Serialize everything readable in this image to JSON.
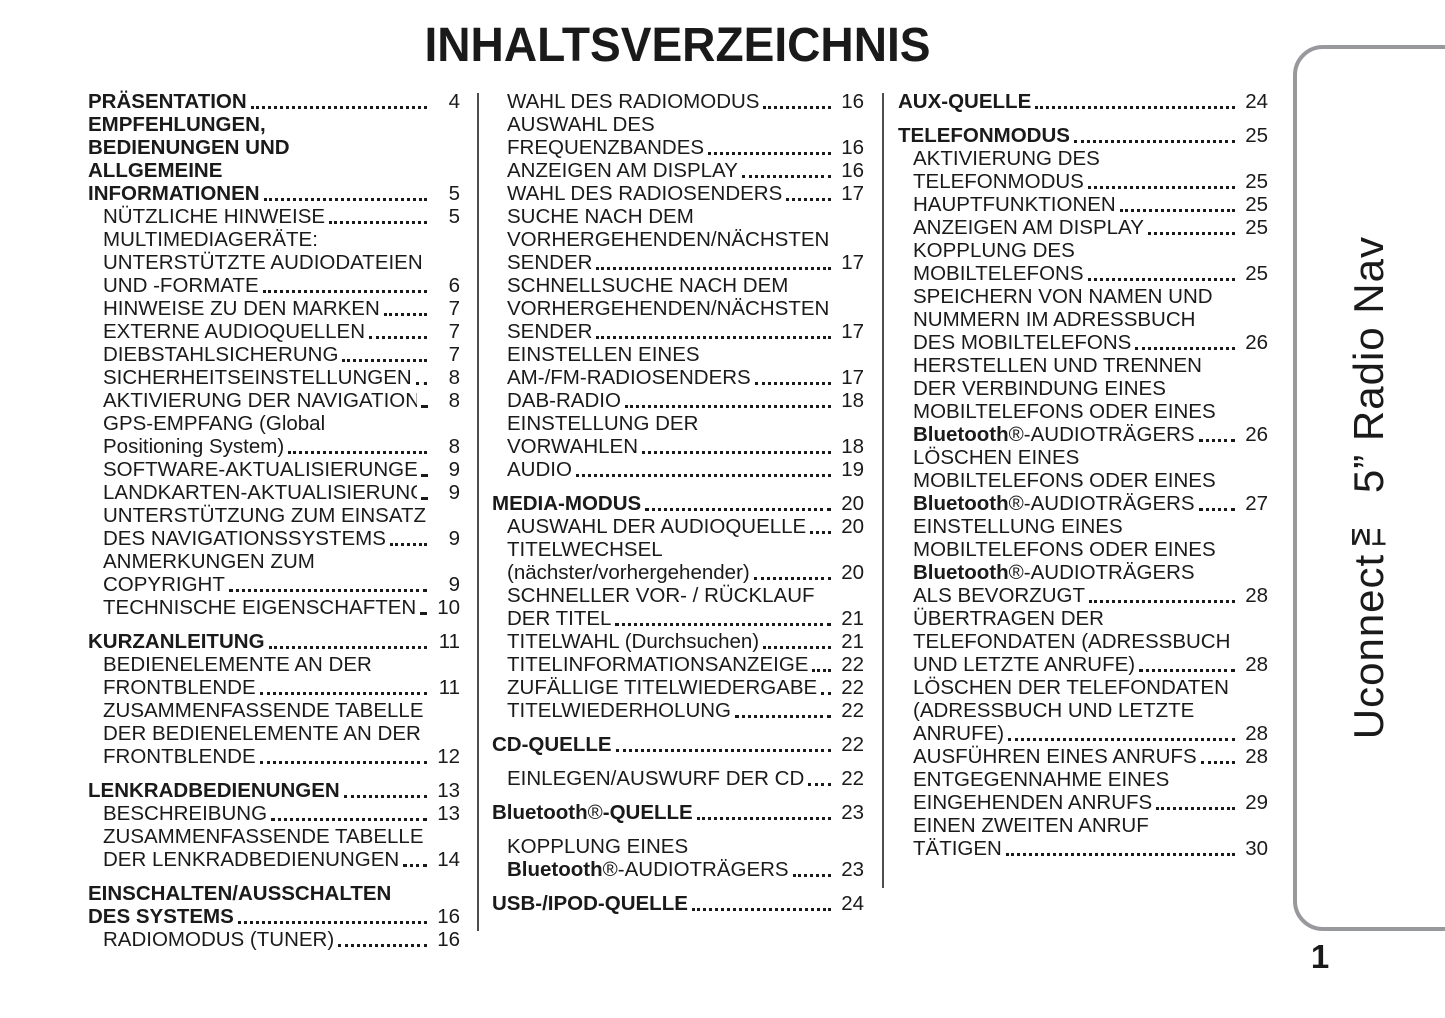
{
  "document": {
    "title": "INHALTSVERZEICHNIS",
    "page_number": "1",
    "sidebar_label": "Uconnect™ 5” Radio Nav"
  },
  "colors": {
    "text": "#1a1a1a",
    "column_separator": "#4d4d4d",
    "sidebar_border": "#98999d"
  },
  "toc": {
    "columns": [
      {
        "entries": [
          {
            "bold": true,
            "page": "4",
            "lines": [
              [
                {
                  "t": "PRÄSENTATION"
                }
              ]
            ]
          },
          {
            "bold": true,
            "page": "5",
            "lines": [
              [
                {
                  "t": "EMPFEHLUNGEN,"
                }
              ],
              [
                {
                  "t": "BEDIENUNGEN UND"
                }
              ],
              [
                {
                  "t": "ALLGEMEINE"
                }
              ],
              [
                {
                  "t": "INFORMATIONEN"
                }
              ]
            ]
          },
          {
            "indent": true,
            "page": "5",
            "lines": [
              [
                {
                  "t": "NÜTZLICHE HINWEISE"
                }
              ]
            ]
          },
          {
            "indent": true,
            "page": "6",
            "lines": [
              [
                {
                  "t": "MULTIMEDIAGERÄTE:"
                }
              ],
              [
                {
                  "t": "UNTERSTÜTZTE AUDIODATEIEN"
                }
              ],
              [
                {
                  "t": "UND -FORMATE"
                }
              ]
            ]
          },
          {
            "indent": true,
            "page": "7",
            "lines": [
              [
                {
                  "t": "HINWEISE ZU DEN MARKEN"
                }
              ]
            ]
          },
          {
            "indent": true,
            "page": "7",
            "lines": [
              [
                {
                  "t": "EXTERNE AUDIOQUELLEN"
                }
              ]
            ]
          },
          {
            "indent": true,
            "page": "7",
            "lines": [
              [
                {
                  "t": "DIEBSTAHLSICHERUNG"
                }
              ]
            ]
          },
          {
            "indent": true,
            "page": "8",
            "lines": [
              [
                {
                  "t": "SICHERHEITSEINSTELLUNGEN"
                }
              ]
            ]
          },
          {
            "indent": true,
            "page": "8",
            "lines": [
              [
                {
                  "t": "AKTIVIERUNG DER NAVIGATION"
                }
              ]
            ]
          },
          {
            "indent": true,
            "page": "8",
            "lines": [
              [
                {
                  "t": "GPS-EMPFANG (Global"
                }
              ],
              [
                {
                  "t": "Positioning System)"
                }
              ]
            ]
          },
          {
            "indent": true,
            "page": "9",
            "lines": [
              [
                {
                  "t": "SOFTWARE-AKTUALISIERUNGEN"
                }
              ]
            ]
          },
          {
            "indent": true,
            "page": "9",
            "lines": [
              [
                {
                  "t": "LANDKARTEN-AKTUALISIERUNG"
                }
              ]
            ]
          },
          {
            "indent": true,
            "page": "9",
            "lines": [
              [
                {
                  "t": "UNTERSTÜTZUNG ZUM EINSATZ"
                }
              ],
              [
                {
                  "t": "DES NAVIGATIONSSYSTEMS"
                }
              ]
            ]
          },
          {
            "indent": true,
            "page": "9",
            "lines": [
              [
                {
                  "t": "ANMERKUNGEN ZUM"
                }
              ],
              [
                {
                  "t": "COPYRIGHT"
                }
              ]
            ]
          },
          {
            "indent": true,
            "page": "10",
            "lines": [
              [
                {
                  "t": "TECHNISCHE EIGENSCHAFTEN"
                }
              ]
            ]
          },
          {
            "bold": true,
            "gap": true,
            "page": "11",
            "lines": [
              [
                {
                  "t": "KURZANLEITUNG"
                }
              ]
            ]
          },
          {
            "indent": true,
            "page": "11",
            "lines": [
              [
                {
                  "t": "BEDIENELEMENTE AN DER"
                }
              ],
              [
                {
                  "t": "FRONTBLENDE"
                }
              ]
            ]
          },
          {
            "indent": true,
            "page": "12",
            "lines": [
              [
                {
                  "t": "ZUSAMMENFASSENDE TABELLE"
                }
              ],
              [
                {
                  "t": "DER BEDIENELEMENTE AN DER"
                }
              ],
              [
                {
                  "t": "FRONTBLENDE"
                }
              ]
            ]
          },
          {
            "bold": true,
            "gap": true,
            "page": "13",
            "lines": [
              [
                {
                  "t": "LENKRADBEDIENUNGEN"
                }
              ]
            ]
          },
          {
            "indent": true,
            "page": "13",
            "lines": [
              [
                {
                  "t": "BESCHREIBUNG"
                }
              ]
            ]
          },
          {
            "indent": true,
            "page": "14",
            "lines": [
              [
                {
                  "t": "ZUSAMMENFASSENDE TABELLE"
                }
              ],
              [
                {
                  "t": "DER LENKRADBEDIENUNGEN"
                }
              ]
            ]
          },
          {
            "bold": true,
            "gap": true,
            "page": "16",
            "lines": [
              [
                {
                  "t": "EINSCHALTEN/AUSSCHALTEN"
                }
              ],
              [
                {
                  "t": "DES SYSTEMS"
                }
              ]
            ]
          },
          {
            "indent": true,
            "page": "16",
            "lines": [
              [
                {
                  "t": "RADIOMODUS (TUNER)"
                }
              ]
            ]
          }
        ]
      },
      {
        "entries": [
          {
            "indent": true,
            "page": "16",
            "lines": [
              [
                {
                  "t": "WAHL DES RADIOMODUS"
                }
              ]
            ]
          },
          {
            "indent": true,
            "page": "16",
            "lines": [
              [
                {
                  "t": "AUSWAHL DES"
                }
              ],
              [
                {
                  "t": "FREQUENZBANDES"
                }
              ]
            ]
          },
          {
            "indent": true,
            "page": "16",
            "lines": [
              [
                {
                  "t": "ANZEIGEN AM DISPLAY"
                }
              ]
            ]
          },
          {
            "indent": true,
            "page": "17",
            "lines": [
              [
                {
                  "t": "WAHL DES RADIOSENDERS"
                }
              ]
            ]
          },
          {
            "indent": true,
            "page": "17",
            "lines": [
              [
                {
                  "t": "SUCHE NACH DEM"
                }
              ],
              [
                {
                  "t": "VORHERGEHENDEN/NÄCHSTEN"
                }
              ],
              [
                {
                  "t": "SENDER"
                }
              ]
            ]
          },
          {
            "indent": true,
            "page": "17",
            "lines": [
              [
                {
                  "t": "SCHNELLSUCHE NACH DEM"
                }
              ],
              [
                {
                  "t": "VORHERGEHENDEN/NÄCHSTEN"
                }
              ],
              [
                {
                  "t": "SENDER"
                }
              ]
            ]
          },
          {
            "indent": true,
            "page": "17",
            "lines": [
              [
                {
                  "t": "EINSTELLEN EINES"
                }
              ],
              [
                {
                  "t": "AM-/FM-RADIOSENDERS"
                }
              ]
            ]
          },
          {
            "indent": true,
            "page": "18",
            "lines": [
              [
                {
                  "t": "DAB-RADIO"
                }
              ]
            ]
          },
          {
            "indent": true,
            "page": "18",
            "lines": [
              [
                {
                  "t": "EINSTELLUNG DER"
                }
              ],
              [
                {
                  "t": "VORWAHLEN"
                }
              ]
            ]
          },
          {
            "indent": true,
            "page": "19",
            "lines": [
              [
                {
                  "t": "AUDIO"
                }
              ]
            ]
          },
          {
            "bold": true,
            "gap": true,
            "page": "20",
            "lines": [
              [
                {
                  "t": "MEDIA-MODUS"
                }
              ]
            ]
          },
          {
            "indent": true,
            "page": "20",
            "lines": [
              [
                {
                  "t": "AUSWAHL DER AUDIOQUELLE"
                }
              ]
            ]
          },
          {
            "indent": true,
            "page": "20",
            "lines": [
              [
                {
                  "t": "TITELWECHSEL"
                }
              ],
              [
                {
                  "t": "(nächster/vorhergehender)"
                }
              ]
            ]
          },
          {
            "indent": true,
            "page": "21",
            "lines": [
              [
                {
                  "t": "SCHNELLER VOR- / RÜCKLAUF"
                }
              ],
              [
                {
                  "t": "DER TITEL"
                }
              ]
            ]
          },
          {
            "indent": true,
            "page": "21",
            "lines": [
              [
                {
                  "t": "TITELWAHL (Durchsuchen)"
                }
              ]
            ]
          },
          {
            "indent": true,
            "page": "22",
            "lines": [
              [
                {
                  "t": "TITELINFORMATIONSANZEIGE"
                }
              ]
            ]
          },
          {
            "indent": true,
            "page": "22",
            "lines": [
              [
                {
                  "t": "ZUFÄLLIGE TITELWIEDERGABE"
                }
              ]
            ]
          },
          {
            "indent": true,
            "page": "22",
            "lines": [
              [
                {
                  "t": "TITELWIEDERHOLUNG"
                }
              ]
            ]
          },
          {
            "bold": true,
            "gap": true,
            "page": "22",
            "lines": [
              [
                {
                  "t": "CD-QUELLE"
                }
              ]
            ]
          },
          {
            "indent": true,
            "gap": true,
            "page": "22",
            "lines": [
              [
                {
                  "t": "EINLEGEN/AUSWURF DER CD"
                }
              ]
            ]
          },
          {
            "bold": true,
            "gap": true,
            "page": "23",
            "lines": [
              [
                {
                  "t": "Bluetooth",
                  "b": true
                },
                {
                  "t": "®",
                  "b": false
                },
                {
                  "t": "-QUELLE",
                  "b": true
                }
              ]
            ]
          },
          {
            "indent": true,
            "gap": true,
            "page": "23",
            "lines": [
              [
                {
                  "t": "KOPPLUNG EINES"
                }
              ],
              [
                {
                  "t": "Bluetooth",
                  "b": true
                },
                {
                  "t": "®-AUDIOTRÄGERS",
                  "b": false
                }
              ]
            ]
          },
          {
            "bold": true,
            "gap": true,
            "page": "24",
            "lines": [
              [
                {
                  "t": "USB-/IPOD-QUELLE"
                }
              ]
            ]
          }
        ]
      },
      {
        "entries": [
          {
            "bold": true,
            "page": "24",
            "lines": [
              [
                {
                  "t": "AUX-QUELLE"
                }
              ]
            ]
          },
          {
            "bold": true,
            "gap": true,
            "page": "25",
            "lines": [
              [
                {
                  "t": "TELEFONMODUS"
                }
              ]
            ]
          },
          {
            "indent": true,
            "page": "25",
            "lines": [
              [
                {
                  "t": "AKTIVIERUNG DES"
                }
              ],
              [
                {
                  "t": "TELEFONMODUS"
                }
              ]
            ]
          },
          {
            "indent": true,
            "page": "25",
            "lines": [
              [
                {
                  "t": "HAUPTFUNKTIONEN"
                }
              ]
            ]
          },
          {
            "indent": true,
            "page": "25",
            "lines": [
              [
                {
                  "t": "ANZEIGEN AM DISPLAY"
                }
              ]
            ]
          },
          {
            "indent": true,
            "page": "25",
            "lines": [
              [
                {
                  "t": "KOPPLUNG DES"
                }
              ],
              [
                {
                  "t": "MOBILTELEFONS"
                }
              ]
            ]
          },
          {
            "indent": true,
            "page": "26",
            "lines": [
              [
                {
                  "t": "SPEICHERN VON NAMEN UND"
                }
              ],
              [
                {
                  "t": "NUMMERN IM ADRESSBUCH"
                }
              ],
              [
                {
                  "t": "DES MOBILTELEFONS"
                }
              ]
            ]
          },
          {
            "indent": true,
            "page": "26",
            "lines": [
              [
                {
                  "t": "HERSTELLEN UND TRENNEN"
                }
              ],
              [
                {
                  "t": "DER VERBINDUNG EINES"
                }
              ],
              [
                {
                  "t": "MOBILTELEFONS ODER EINES"
                }
              ],
              [
                {
                  "t": "Bluetooth",
                  "b": true
                },
                {
                  "t": "®-AUDIOTRÄGERS",
                  "b": false
                }
              ]
            ]
          },
          {
            "indent": true,
            "page": "27",
            "lines": [
              [
                {
                  "t": "LÖSCHEN EINES"
                }
              ],
              [
                {
                  "t": "MOBILTELEFONS ODER EINES"
                }
              ],
              [
                {
                  "t": "Bluetooth",
                  "b": true
                },
                {
                  "t": "®-AUDIOTRÄGERS",
                  "b": false
                }
              ]
            ]
          },
          {
            "indent": true,
            "page": "28",
            "lines": [
              [
                {
                  "t": "EINSTELLUNG EINES"
                }
              ],
              [
                {
                  "t": "MOBILTELEFONS ODER EINES"
                }
              ],
              [
                {
                  "t": "Bluetooth",
                  "b": true
                },
                {
                  "t": "®-AUDIOTRÄGERS",
                  "b": false
                }
              ],
              [
                {
                  "t": "ALS BEVORZUGT"
                }
              ]
            ]
          },
          {
            "indent": true,
            "page": "28",
            "lines": [
              [
                {
                  "t": "ÜBERTRAGEN DER"
                }
              ],
              [
                {
                  "t": "TELEFONDATEN (ADRESSBUCH"
                }
              ],
              [
                {
                  "t": "UND LETZTE ANRUFE)"
                }
              ]
            ]
          },
          {
            "indent": true,
            "page": "28",
            "lines": [
              [
                {
                  "t": "LÖSCHEN DER TELEFONDATEN"
                }
              ],
              [
                {
                  "t": "(ADRESSBUCH UND LETZTE"
                }
              ],
              [
                {
                  "t": "ANRUFE)"
                }
              ]
            ]
          },
          {
            "indent": true,
            "page": "28",
            "lines": [
              [
                {
                  "t": "AUSFÜHREN EINES ANRUFS"
                }
              ]
            ]
          },
          {
            "indent": true,
            "page": "29",
            "lines": [
              [
                {
                  "t": "ENTGEGENNAHME EINES"
                }
              ],
              [
                {
                  "t": "EINGEHENDEN ANRUFS"
                }
              ]
            ]
          },
          {
            "indent": true,
            "page": "30",
            "lines": [
              [
                {
                  "t": "EINEN ZWEITEN ANRUF"
                }
              ],
              [
                {
                  "t": "TÄTIGEN"
                }
              ]
            ]
          }
        ]
      }
    ]
  }
}
